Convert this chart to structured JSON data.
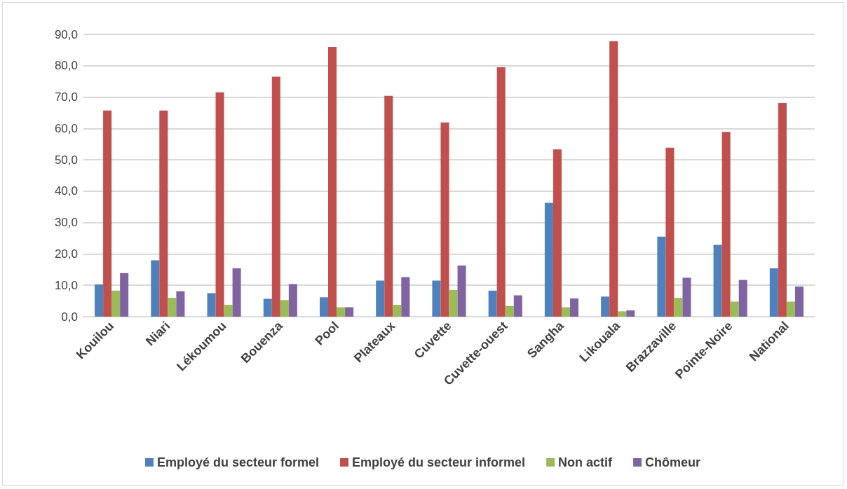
{
  "chart_data": {
    "type": "bar",
    "categories": [
      "Kouilou",
      "Niari",
      "Lékoumou",
      "Bouenza",
      "Pool",
      "Plateaux",
      "Cuvette",
      "Cuvette-ouest",
      "Sangha",
      "Likouala",
      "Brazzaville",
      "Pointe-Noire",
      "National"
    ],
    "series": [
      {
        "name": "Employé du secteur formel",
        "color": "#4f81bd",
        "values": [
          10.3,
          18.0,
          7.5,
          5.7,
          6.2,
          11.5,
          11.5,
          8.3,
          36.3,
          6.4,
          25.5,
          22.9,
          15.4
        ]
      },
      {
        "name": "Employé du secteur informel",
        "color": "#c0504d",
        "values": [
          65.7,
          65.7,
          71.5,
          76.5,
          86.0,
          70.4,
          61.9,
          79.5,
          53.3,
          87.8,
          53.9,
          58.9,
          68.1
        ]
      },
      {
        "name": "Non actif",
        "color": "#9bbb59",
        "values": [
          8.3,
          6.0,
          3.8,
          5.3,
          3.0,
          3.8,
          8.5,
          3.4,
          3.0,
          1.7,
          6.0,
          4.8,
          4.8
        ]
      },
      {
        "name": "Chômeur",
        "color": "#8064a2",
        "values": [
          13.9,
          8.1,
          15.4,
          10.4,
          3.0,
          12.6,
          16.3,
          6.8,
          5.8,
          2.0,
          12.4,
          11.7,
          9.6
        ]
      }
    ],
    "ylim": [
      0,
      90
    ],
    "yticks": [
      {
        "value": 0,
        "label": "0,0"
      },
      {
        "value": 10,
        "label": "10,0"
      },
      {
        "value": 20,
        "label": "20,0"
      },
      {
        "value": 30,
        "label": "30,0"
      },
      {
        "value": 40,
        "label": "40,0"
      },
      {
        "value": 50,
        "label": "50,0"
      },
      {
        "value": 60,
        "label": "60,0"
      },
      {
        "value": 70,
        "label": "70,0"
      },
      {
        "value": 80,
        "label": "80,0"
      },
      {
        "value": 90,
        "label": "90,0"
      }
    ],
    "grid": "y",
    "legend": "bottom"
  }
}
